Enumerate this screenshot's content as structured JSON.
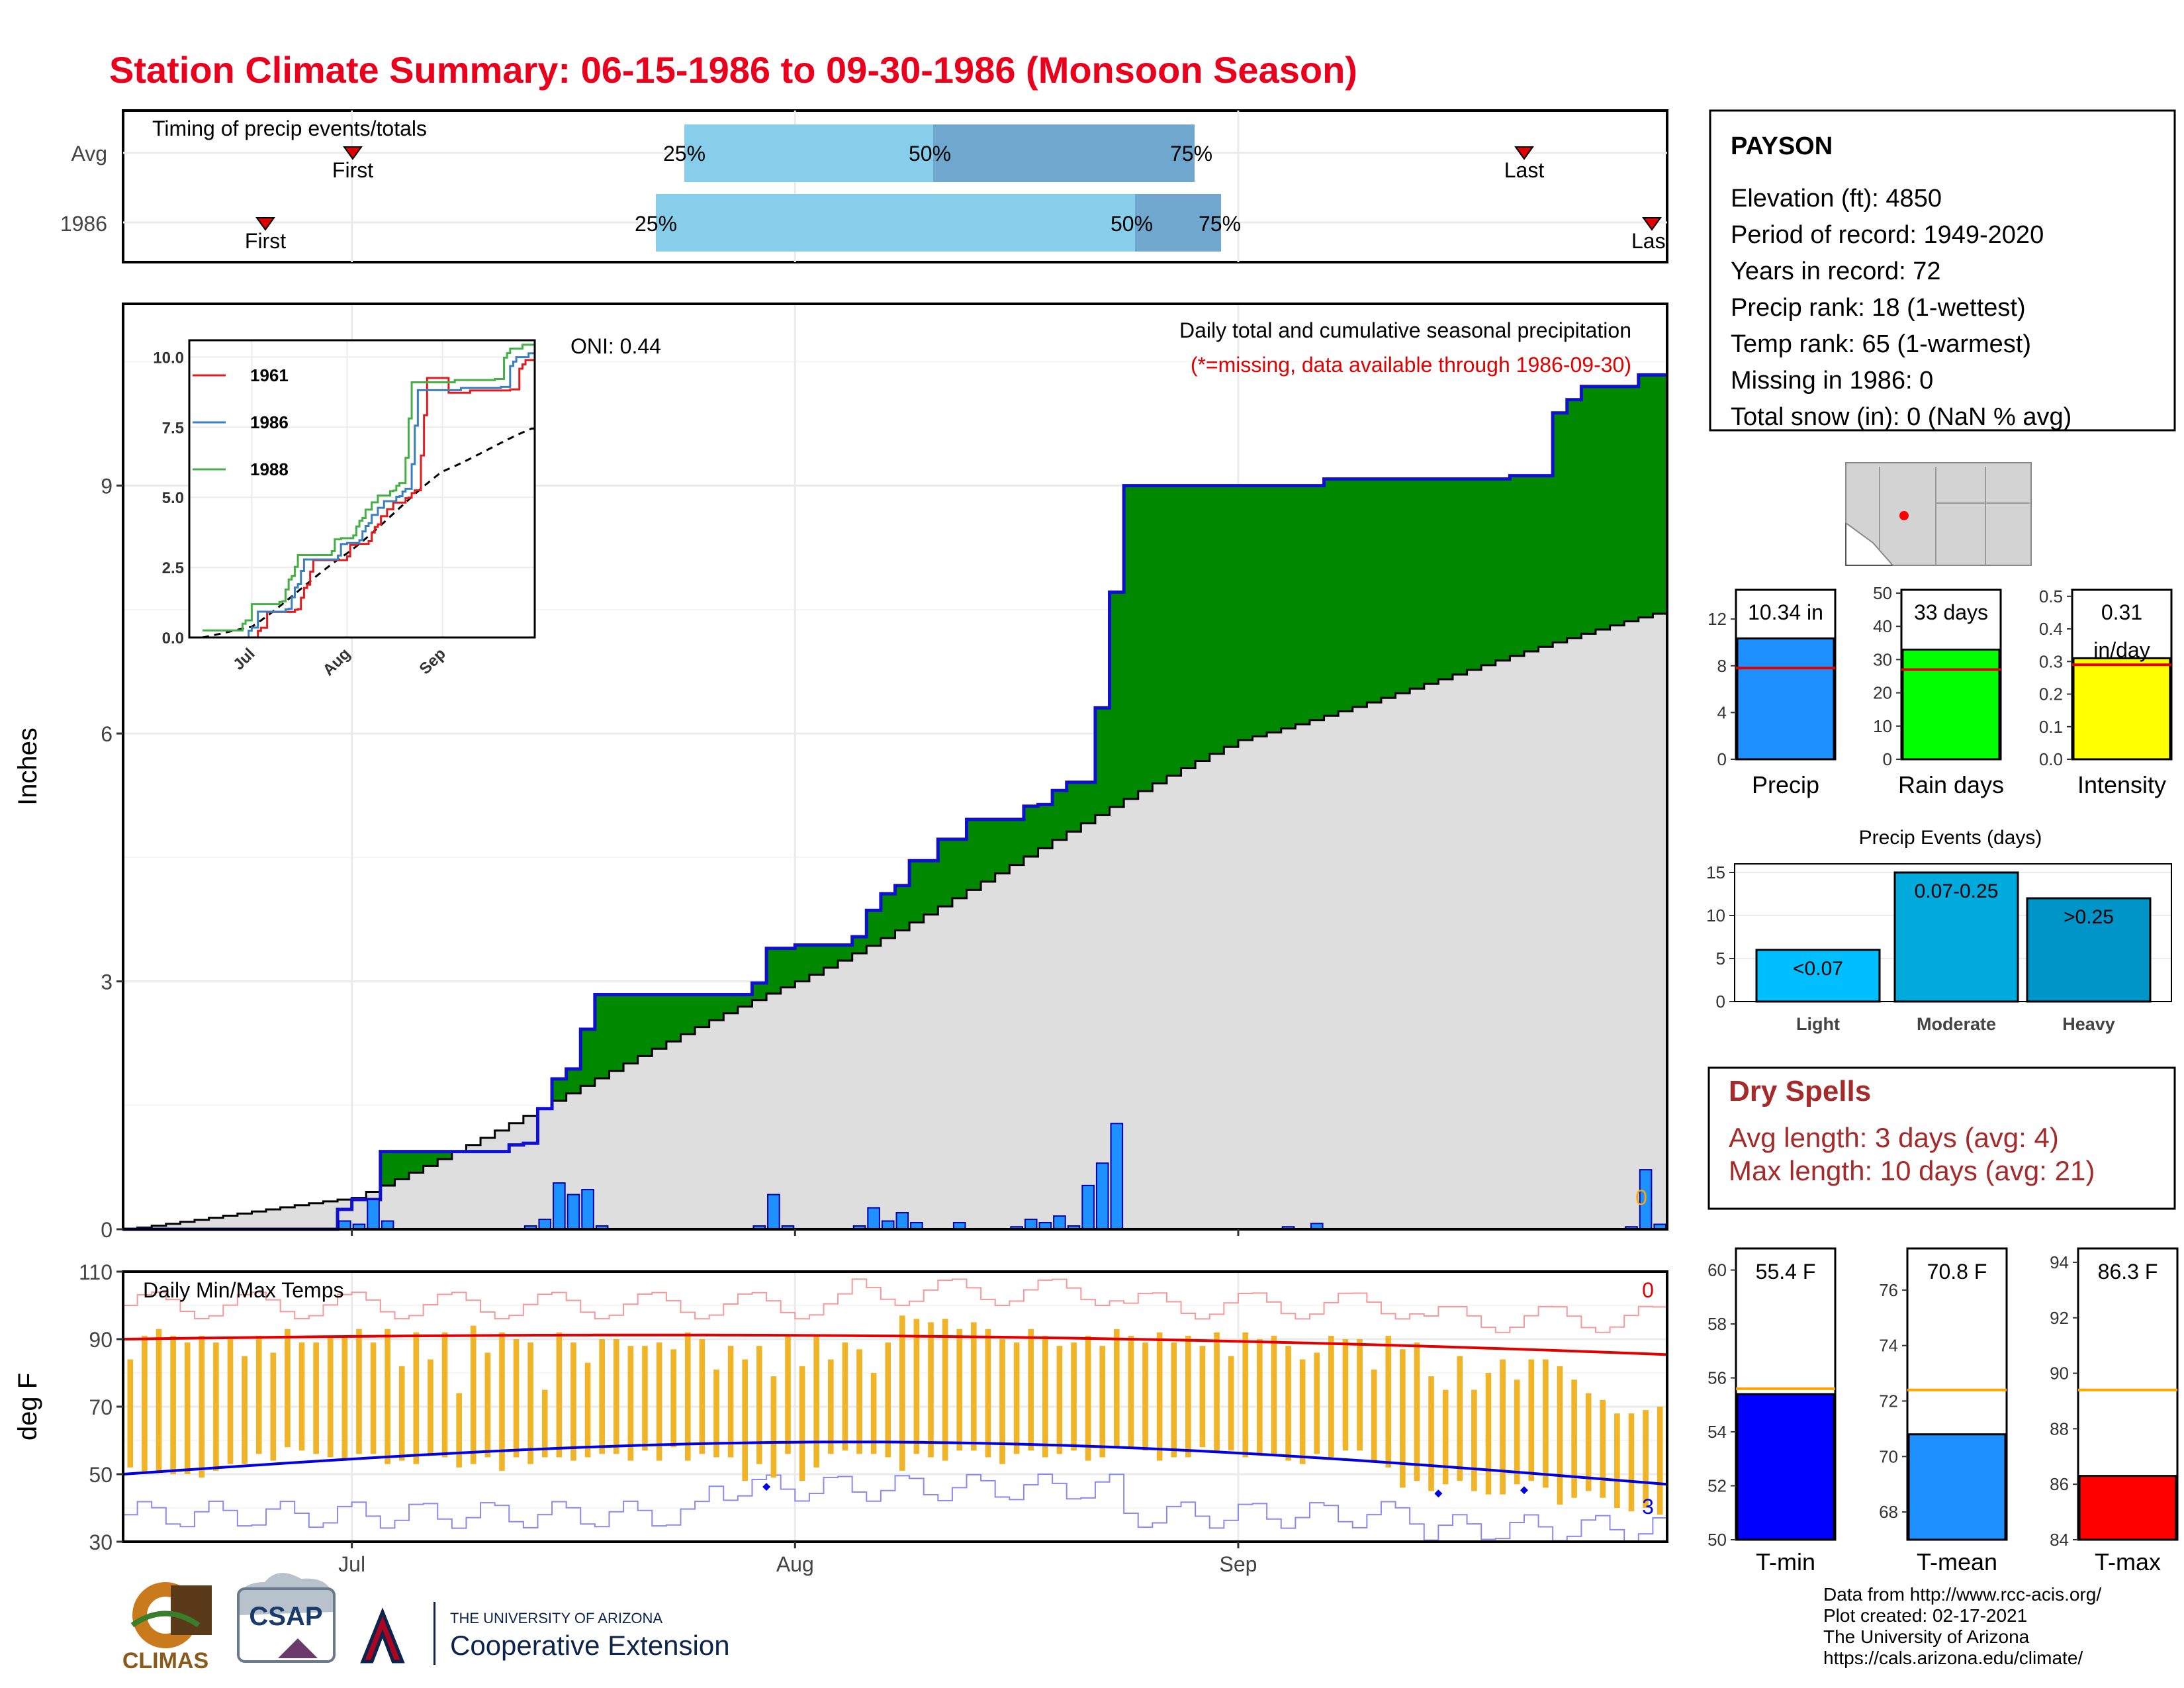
{
  "title": "Station Climate Summary: 06-15-1986 to 09-30-1986 (Monsoon Season)",
  "colors": {
    "title_red": "#e8001c",
    "green_above": "#008800",
    "brown_below": "#7a4f16",
    "cum_avg_fill": "#dedede",
    "cum_outline": "#1010d0",
    "daily_bar": "#1e90ff",
    "temp_range": "#f0b429",
    "max_line": "#e00000",
    "min_line": "#0000e0"
  },
  "timing": {
    "title": "Timing of precip events/totals",
    "rows": [
      {
        "label": "Avg",
        "first_label": "First",
        "last_label": "Last",
        "pct_labels": [
          "25%",
          "50%",
          "75%"
        ]
      },
      {
        "label": "1986",
        "first_label": "First",
        "last_label": "Las",
        "pct_labels": [
          "25%",
          "50%",
          "75%"
        ]
      }
    ]
  },
  "precip_panel": {
    "ylabel": "Inches",
    "yticks": [
      "0",
      "3",
      "6",
      "9"
    ],
    "note": "Daily total and cumulative seasonal precipitation",
    "missing_note": "(*=missing, data available through 1986-09-30)",
    "oni": "ONI: 0.44",
    "missing_count": "0"
  },
  "inset": {
    "yticks": [
      "0.0",
      "2.5",
      "5.0",
      "7.5",
      "10.0"
    ],
    "xticks": [
      "Jul",
      "Aug",
      "Sep"
    ],
    "legend": [
      {
        "name": "1961",
        "color": "#e31a1c"
      },
      {
        "name": "1986",
        "color": "#3a7fc0"
      },
      {
        "name": "1988",
        "color": "#45b045"
      }
    ]
  },
  "temp_panel": {
    "ylabel": "deg F",
    "title": "Daily Min/Max Temps",
    "yticks": [
      "30",
      "50",
      "70",
      "90",
      "110"
    ],
    "xticks": [
      "Jul",
      "Aug",
      "Sep"
    ],
    "max_missing": "0",
    "min_missing": "3"
  },
  "station": {
    "name": "PAYSON",
    "lines": [
      "Elevation (ft): 4850",
      "Period of record: 1949-2020",
      "Years in record: 72",
      "Precip rank: 18 (1-wettest)",
      "Temp rank: 65 (1-warmest)",
      "Missing in 1986: 0",
      "Total snow (in): 0 (NaN % avg)"
    ]
  },
  "summary_bars": [
    {
      "label": "Precip",
      "value_text": "10.34 in",
      "value": 10.34,
      "avg": 7.8,
      "ymax": 14.5,
      "ticks": [
        "0",
        "4",
        "8",
        "12"
      ],
      "tick_vals": [
        0,
        4,
        8,
        12
      ],
      "color": "#1e90ff"
    },
    {
      "label": "Rain days",
      "value_text": "33 days",
      "value": 33,
      "avg": 27,
      "ymax": 51,
      "ticks": [
        "0",
        "10",
        "20",
        "30",
        "40",
        "50"
      ],
      "tick_vals": [
        0,
        10,
        20,
        30,
        40,
        50
      ],
      "color": "#00ff00"
    },
    {
      "label": "Intensity",
      "value_text": "0.31",
      "value_text2": "in/day",
      "value": 0.31,
      "avg": 0.29,
      "ymax": 0.52,
      "ticks": [
        "0.0",
        "0.1",
        "0.2",
        "0.3",
        "0.4",
        "0.5"
      ],
      "tick_vals": [
        0,
        0.1,
        0.2,
        0.3,
        0.4,
        0.5
      ],
      "color": "#ffff00"
    }
  ],
  "precip_events": {
    "title": "Precip Events (days)",
    "yticks": [
      "0",
      "5",
      "10",
      "15"
    ],
    "bars": [
      {
        "label": "Light",
        "range": "<0.07",
        "value": 6,
        "color": "#00bfff"
      },
      {
        "label": "Moderate",
        "range": "0.07-0.25",
        "value": 15,
        "color": "#00aadd"
      },
      {
        "label": "Heavy",
        "range": ">0.25",
        "value": 12,
        "color": "#0095c8"
      }
    ]
  },
  "dry_spells": {
    "title": "Dry Spells",
    "avg_line": "Avg length: 3 days (avg: 4)",
    "max_line": "Max length: 10 days (avg: 21)",
    "color": "#a52a2a"
  },
  "temp_bars": [
    {
      "label": "T-min",
      "value_text": "55.4 F",
      "value": 55.4,
      "avg": 55.6,
      "ymin": 50,
      "ymax": 60.8,
      "ticks": [
        "50",
        "52",
        "54",
        "56",
        "58",
        "60"
      ],
      "tick_vals": [
        50,
        52,
        54,
        56,
        58,
        60
      ],
      "color": "#0000ff"
    },
    {
      "label": "T-mean",
      "value_text": "70.8 F",
      "value": 70.8,
      "avg": 72.4,
      "ymin": 67,
      "ymax": 77.5,
      "ticks": [
        "68",
        "70",
        "72",
        "74",
        "76"
      ],
      "tick_vals": [
        68,
        70,
        72,
        74,
        76
      ],
      "color": "#1e90ff"
    },
    {
      "label": "T-max",
      "value_text": "86.3 F",
      "value": 86.3,
      "avg": 89.4,
      "ymin": 84,
      "ymax": 94.5,
      "ticks": [
        "84",
        "86",
        "88",
        "90",
        "92",
        "94"
      ],
      "tick_vals": [
        84,
        86,
        88,
        90,
        92,
        94
      ],
      "color": "#ff0000"
    }
  ],
  "credits": [
    "Data from http://www.rcc-acis.org/",
    "Plot created: 02-17-2021",
    "The University of Arizona",
    "https://cals.arizona.edu/climate/"
  ],
  "logos": {
    "climas": "CLIMAS",
    "csap": "CSAP",
    "ua_small": "THE UNIVERSITY OF ARIZONA",
    "ua_big": "Cooperative Extension"
  },
  "chart_data": {
    "type": "area",
    "title": "Daily total and cumulative seasonal precipitation",
    "ylabel": "Inches",
    "ylim": [
      0,
      11.2
    ],
    "x_range": [
      "1986-06-15",
      "1986-09-30"
    ],
    "xticks": [
      "Jul",
      "Aug",
      "Sep"
    ],
    "series": [
      {
        "name": "cumulative_1986",
        "x": [
          "06-15",
          "06-30",
          "07-01",
          "07-03",
          "07-10",
          "07-12",
          "07-13",
          "07-14",
          "07-15",
          "07-16",
          "07-17",
          "07-18",
          "07-19",
          "07-20",
          "07-21",
          "07-22",
          "07-23",
          "07-29",
          "07-30",
          "07-31",
          "08-01",
          "08-05",
          "08-06",
          "08-07",
          "08-08",
          "08-09",
          "08-10",
          "08-11",
          "08-12",
          "08-13",
          "08-16",
          "08-17",
          "08-18",
          "08-19",
          "08-20",
          "08-21",
          "08-22",
          "08-23",
          "08-24",
          "08-25",
          "08-26",
          "08-27",
          "08-28",
          "08-29",
          "09-04",
          "09-07",
          "09-20",
          "09-23",
          "09-24",
          "09-25",
          "09-26",
          "09-27",
          "09-28",
          "09-29",
          "09-30"
        ],
        "values": [
          0.0,
          0.24,
          0.36,
          0.94,
          0.94,
          1.02,
          1.04,
          1.46,
          1.82,
          1.94,
          2.42,
          2.84,
          2.84,
          2.84,
          2.84,
          2.84,
          2.84,
          2.98,
          3.4,
          3.4,
          3.44,
          3.54,
          3.86,
          4.06,
          4.16,
          4.46,
          4.46,
          4.72,
          4.72,
          4.96,
          4.96,
          5.12,
          5.14,
          5.31,
          5.41,
          5.41,
          6.31,
          7.71,
          9.0,
          9.0,
          9.0,
          9.0,
          9.0,
          9.0,
          9.0,
          9.08,
          9.12,
          9.88,
          10.04,
          10.2,
          10.2,
          10.2,
          10.2,
          10.34,
          10.34
        ]
      },
      {
        "name": "cumulative_avg",
        "x": [
          "06-15",
          "07-01",
          "08-01",
          "09-01",
          "09-30"
        ],
        "values": [
          0.0,
          0.38,
          3.0,
          5.92,
          7.45
        ]
      },
      {
        "name": "daily_1986",
        "x": [
          "06-30",
          "07-01",
          "07-02",
          "07-03",
          "07-13",
          "07-14",
          "07-15",
          "07-16",
          "07-17",
          "07-18",
          "07-29",
          "07-30",
          "07-31",
          "08-05",
          "08-06",
          "08-07",
          "08-08",
          "08-09",
          "08-12",
          "08-16",
          "08-17",
          "08-18",
          "08-19",
          "08-20",
          "08-21",
          "08-22",
          "08-23",
          "09-04",
          "09-06",
          "09-28",
          "09-29",
          "09-30"
        ],
        "values": [
          0.1,
          0.06,
          0.36,
          0.1,
          0.04,
          0.12,
          0.56,
          0.42,
          0.48,
          0.04,
          0.04,
          0.42,
          0.04,
          0.04,
          0.26,
          0.1,
          0.2,
          0.08,
          0.08,
          0.03,
          0.12,
          0.08,
          0.16,
          0.04,
          0.53,
          0.8,
          1.28,
          0.03,
          0.07,
          0.03,
          0.72,
          0.06
        ]
      }
    ],
    "temps": {
      "ylim": [
        30,
        110
      ],
      "daily_max": [
        84,
        91,
        93,
        91,
        89,
        91,
        89,
        90,
        85,
        91,
        86,
        93,
        89,
        89,
        91,
        91,
        93,
        89,
        93,
        82,
        92,
        84,
        92,
        74,
        94,
        86,
        92,
        90,
        89,
        75,
        92,
        89,
        83,
        90,
        90,
        88,
        88,
        89,
        87,
        92,
        90,
        81,
        88,
        84,
        88,
        79,
        91,
        82,
        91,
        84,
        89,
        87,
        80,
        89,
        97,
        96,
        95,
        96,
        93,
        95,
        93,
        90,
        89,
        93,
        91,
        88,
        89,
        91,
        88,
        93,
        91,
        89,
        92,
        89,
        91,
        88,
        92,
        85,
        92,
        90,
        91,
        88,
        84,
        86,
        91,
        90,
        90,
        81,
        91,
        87,
        89,
        79,
        75,
        85,
        75,
        80,
        84,
        78,
        84,
        84,
        82,
        78,
        74,
        72,
        68,
        68,
        69,
        70
      ],
      "daily_min": [
        52,
        50,
        51,
        50,
        50,
        49,
        51,
        53,
        53,
        56,
        54,
        58,
        57,
        56,
        55,
        54,
        56,
        56,
        53,
        54,
        53,
        56,
        55,
        52,
        53,
        55,
        51,
        55,
        53,
        55,
        55,
        54,
        55,
        56,
        56,
        54,
        57,
        54,
        58,
        54,
        56,
        55,
        55,
        48,
        53,
        49,
        56,
        48,
        52,
        56,
        57,
        56,
        56,
        55,
        51,
        56,
        55,
        54,
        57,
        57,
        55,
        53,
        56,
        57,
        55,
        56,
        57,
        54,
        55,
        58,
        58,
        57,
        54,
        55,
        55,
        58,
        57,
        57,
        55,
        56,
        56,
        54,
        53,
        56,
        55,
        57,
        57,
        54,
        52,
        46,
        48,
        45,
        47,
        48,
        45,
        44,
        44,
        47,
        48,
        46,
        41,
        43,
        45,
        43,
        40,
        39,
        40,
        38
      ],
      "avg_max_start": 90,
      "avg_max_end": 83,
      "avg_min_start": 50,
      "avg_min_end": 47
    }
  }
}
